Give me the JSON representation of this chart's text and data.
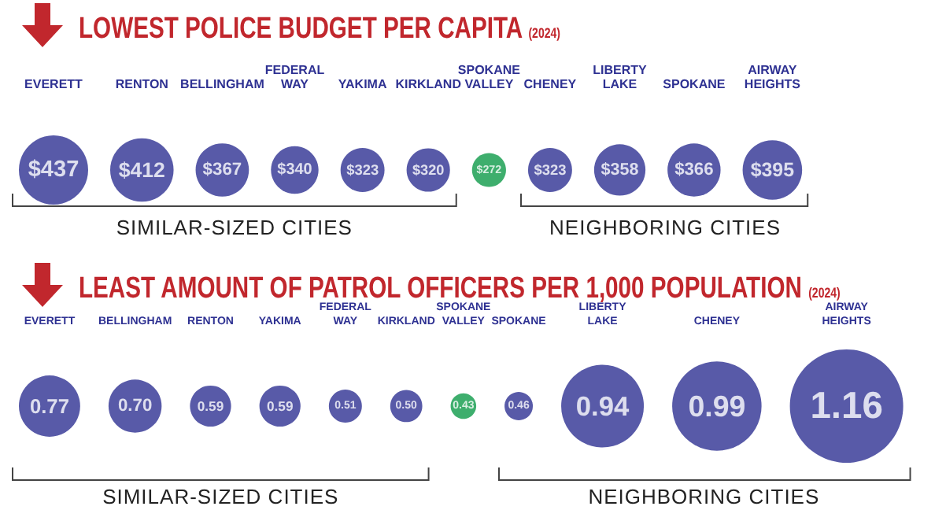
{
  "chart_data": [
    {
      "type": "other",
      "title": "LOWEST POLICE BUDGET PER CAPITA",
      "subtitle": "(2024)",
      "categories": [
        "EVERETT",
        "RENTON",
        "BELLINGHAM",
        "FEDERAL WAY",
        "YAKIMA",
        "KIRKLAND",
        "SPOKANE VALLEY",
        "CHENEY",
        "LIBERTY LAKE",
        "SPOKANE",
        "AIRWAY HEIGHTS"
      ],
      "values": [
        437,
        412,
        367,
        340,
        323,
        320,
        272,
        323,
        358,
        366,
        395
      ],
      "value_labels": [
        "$437",
        "$412",
        "$367",
        "$340",
        "$323",
        "$320",
        "$272",
        "$323",
        "$358",
        "$366",
        "$395"
      ],
      "colors": [
        "#2e3192",
        "#2e3192",
        "#2e3192",
        "#2e3192",
        "#2e3192",
        "#2e3192",
        "#0e9a48",
        "#2e3192",
        "#2e3192",
        "#2e3192",
        "#2e3192"
      ],
      "annotations": [
        "SIMILAR-SIZED CITIES",
        "NEIGHBORING CITIES"
      ]
    },
    {
      "type": "other",
      "title": "LEAST AMOUNT OF PATROL OFFICERS PER 1,000 POPULATION",
      "subtitle": "(2024)",
      "categories": [
        "EVERETT",
        "BELLINGHAM",
        "RENTON",
        "YAKIMA",
        "FEDERAL WAY",
        "KIRKLAND",
        "SPOKANE VALLEY",
        "SPOKANE",
        "LIBERTY LAKE",
        "CHENEY",
        "AIRWAY HEIGHTS"
      ],
      "values": [
        0.77,
        0.7,
        0.59,
        0.59,
        0.51,
        0.5,
        0.43,
        0.46,
        0.94,
        0.99,
        1.16
      ],
      "value_labels": [
        "0.77",
        "0.70",
        "0.59",
        "0.59",
        "0.51",
        "0.50",
        "0.43",
        "0.46",
        "0.94",
        "0.99",
        "1.16"
      ],
      "colors": [
        "#2e3192",
        "#2e3192",
        "#2e3192",
        "#2e3192",
        "#2e3192",
        "#2e3192",
        "#0e9a48",
        "#2e3192",
        "#2e3192",
        "#2e3192",
        "#2e3192"
      ],
      "annotations": [
        "SIMILAR-SIZED CITIES",
        "NEIGHBORING CITIES"
      ]
    }
  ]
}
